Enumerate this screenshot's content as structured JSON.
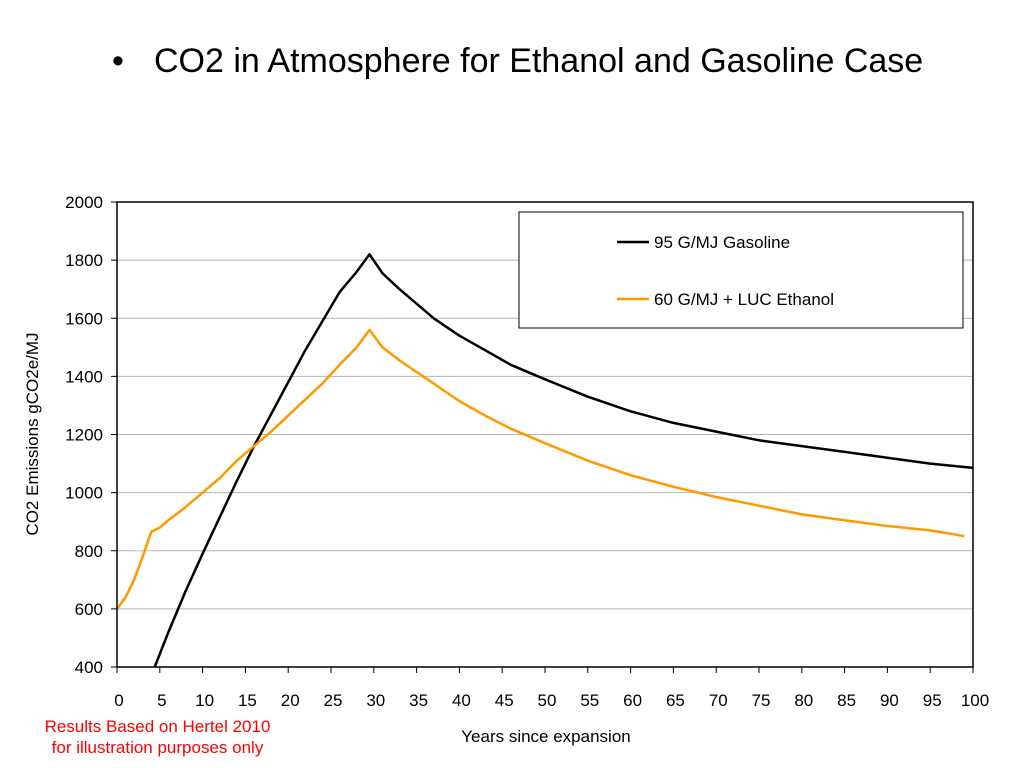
{
  "slide": {
    "bullet": "•",
    "title": "CO2 in Atmosphere for Ethanol and Gasoline Case",
    "note_line1": "Results Based on Hertel 2010",
    "note_line2": "for illustration purposes only"
  },
  "chart_data": {
    "type": "line",
    "title": "",
    "xlabel": "Years since expansion",
    "ylabel": "CO2 Emissions gCO2e/MJ",
    "xlim": [
      0,
      100
    ],
    "ylim": [
      400,
      2000
    ],
    "xticks": [
      0,
      5,
      10,
      15,
      20,
      25,
      30,
      35,
      40,
      45,
      50,
      55,
      60,
      65,
      70,
      75,
      80,
      85,
      90,
      95,
      100
    ],
    "yticks": [
      400,
      600,
      800,
      1000,
      1200,
      1400,
      1600,
      1800,
      2000
    ],
    "grid": "horizontal",
    "legend": "top-right",
    "series": [
      {
        "name": "95 G/MJ Gasoline",
        "color": "#000000",
        "points": [
          [
            4.4,
            400
          ],
          [
            6,
            520
          ],
          [
            8,
            660
          ],
          [
            10,
            790
          ],
          [
            12,
            915
          ],
          [
            14,
            1040
          ],
          [
            16,
            1160
          ],
          [
            18,
            1270
          ],
          [
            20,
            1380
          ],
          [
            22,
            1490
          ],
          [
            24,
            1590
          ],
          [
            26,
            1690
          ],
          [
            28,
            1760
          ],
          [
            29.5,
            1820
          ],
          [
            31,
            1755
          ],
          [
            33,
            1700
          ],
          [
            35,
            1650
          ],
          [
            37,
            1600
          ],
          [
            40,
            1540
          ],
          [
            43,
            1490
          ],
          [
            46,
            1440
          ],
          [
            50,
            1390
          ],
          [
            55,
            1330
          ],
          [
            60,
            1280
          ],
          [
            65,
            1240
          ],
          [
            70,
            1210
          ],
          [
            75,
            1180
          ],
          [
            80,
            1160
          ],
          [
            85,
            1140
          ],
          [
            90,
            1120
          ],
          [
            95,
            1100
          ],
          [
            100,
            1085
          ]
        ]
      },
      {
        "name": "60 G/MJ + LUC Ethanol",
        "color": "#ff9900",
        "points": [
          [
            0,
            600
          ],
          [
            1,
            640
          ],
          [
            2,
            700
          ],
          [
            3,
            780
          ],
          [
            4,
            865
          ],
          [
            5,
            880
          ],
          [
            6,
            905
          ],
          [
            8,
            950
          ],
          [
            10,
            1000
          ],
          [
            12,
            1050
          ],
          [
            14,
            1110
          ],
          [
            16,
            1160
          ],
          [
            18,
            1210
          ],
          [
            20,
            1265
          ],
          [
            22,
            1320
          ],
          [
            24,
            1375
          ],
          [
            26,
            1440
          ],
          [
            28,
            1500
          ],
          [
            29.5,
            1560
          ],
          [
            31,
            1500
          ],
          [
            33,
            1455
          ],
          [
            35,
            1415
          ],
          [
            37,
            1375
          ],
          [
            40,
            1315
          ],
          [
            43,
            1265
          ],
          [
            46,
            1220
          ],
          [
            50,
            1170
          ],
          [
            55,
            1110
          ],
          [
            60,
            1060
          ],
          [
            65,
            1020
          ],
          [
            70,
            985
          ],
          [
            75,
            955
          ],
          [
            80,
            925
          ],
          [
            85,
            905
          ],
          [
            90,
            885
          ],
          [
            95,
            870
          ],
          [
            99,
            850
          ]
        ]
      }
    ]
  }
}
